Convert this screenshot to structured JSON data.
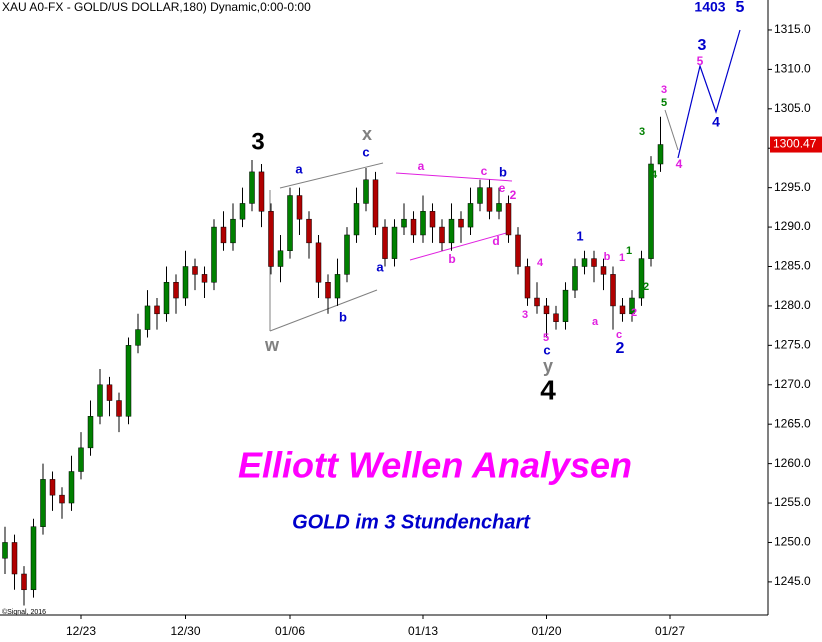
{
  "chart_data": {
    "type": "candlestick",
    "title": "XAU A0-FX - GOLD/US DOLLAR,180) Dynamic,0:00-0:00",
    "headline": "Elliott Wellen Analysen",
    "subtitle": "GOLD im 3 Stundenchart",
    "credit": "©Signal, 2016",
    "categories": [
      null,
      null,
      null,
      null,
      null,
      null,
      null,
      null,
      "12/23",
      null,
      null,
      null,
      null,
      null,
      null,
      null,
      null,
      null,
      null,
      "12/30",
      null,
      null,
      null,
      null,
      null,
      null,
      null,
      null,
      null,
      null,
      "01/06",
      null,
      null,
      null,
      null,
      null,
      null,
      null,
      null,
      null,
      null,
      null,
      null,
      null,
      "01/13",
      null,
      null,
      null,
      null,
      null,
      null,
      null,
      null,
      null,
      null,
      null,
      null,
      "01/20",
      null,
      null,
      null,
      null,
      null,
      null,
      null,
      null,
      null,
      null,
      null,
      null,
      "01/27"
    ],
    "open": [
      1248,
      1250,
      1246,
      1244,
      1252,
      1258,
      1256,
      1255,
      1259,
      1262,
      1266,
      1270,
      1268,
      1266,
      1275,
      1277,
      1280,
      1279,
      1283,
      1281,
      1285,
      1284,
      1283,
      1290,
      1288,
      1291,
      1293,
      1297,
      1292,
      1285,
      1287,
      1294,
      1291,
      1288,
      1283,
      1281,
      1284,
      1289,
      1293,
      1296,
      1290,
      1286,
      1290,
      1291,
      1289,
      1292,
      1290,
      1288,
      1291,
      1290,
      1293,
      1295,
      1292,
      1293,
      1289,
      1285,
      1281,
      1280,
      1279,
      1278,
      1282,
      1285,
      1286,
      1285,
      1284,
      1280,
      1279,
      1281,
      1286,
      1298,
      null
    ],
    "high": [
      1252,
      1251,
      1247,
      1253,
      1260,
      1259,
      1257,
      1261,
      1264,
      1268,
      1272,
      1271,
      1269,
      1276,
      1279,
      1282,
      1281,
      1285,
      1284,
      1287,
      1286,
      1285,
      1291,
      1292,
      1293,
      1295,
      1298.5,
      1298,
      1293,
      1289,
      1295,
      1295,
      1292,
      1289,
      1284,
      1286,
      1290,
      1295,
      1297.5,
      1297,
      1291,
      1291,
      1293,
      1292,
      1294,
      1293,
      1291,
      1293,
      1292,
      1295,
      1296,
      1296,
      1295,
      1294,
      1290,
      1286,
      1283,
      1281,
      1280,
      1283,
      1286,
      1287,
      1287,
      1286,
      1285,
      1281,
      1282,
      1287,
      1299,
      1304,
      null
    ],
    "low": [
      1246,
      1244,
      1242,
      1243,
      1251,
      1254,
      1253,
      1254,
      1258,
      1261,
      1265,
      1266,
      1264,
      1265,
      1274,
      1276,
      1277,
      1278,
      1279,
      1280,
      1282,
      1281,
      1282,
      1287,
      1287,
      1290,
      1292,
      1290,
      1284,
      1283,
      1286,
      1289,
      1286,
      1281,
      1279,
      1280,
      1283,
      1288,
      1292,
      1289,
      1285,
      1285,
      1289,
      1288,
      1288,
      1288,
      1287,
      1287,
      1288,
      1289,
      1292,
      1291,
      1291,
      1288,
      1284,
      1280,
      1279,
      1276,
      1277,
      1277,
      1281,
      1284,
      1283,
      1282,
      1277,
      1278,
      1278,
      1280,
      1285,
      1297,
      null
    ],
    "close": [
      1250,
      1246,
      1244,
      1252,
      1258,
      1256,
      1255,
      1259,
      1262,
      1266,
      1270,
      1268,
      1266,
      1275,
      1277,
      1280,
      1279,
      1283,
      1281,
      1285,
      1284,
      1283,
      1290,
      1288,
      1291,
      1293,
      1297,
      1292,
      1285,
      1287,
      1294,
      1291,
      1288,
      1283,
      1281,
      1284,
      1289,
      1293,
      1296,
      1290,
      1286,
      1290,
      1291,
      1289,
      1292,
      1290,
      1288,
      1291,
      1290,
      1293,
      1295,
      1292,
      1293,
      1289,
      1285,
      1281,
      1280,
      1279,
      1278,
      1282,
      1285,
      1286,
      1285,
      1284,
      1280,
      1279,
      1281,
      1286,
      1298,
      1300.47,
      null
    ],
    "up_color": "#008000",
    "down_color": "#b00000",
    "ylim": [
      1240.8,
      1318.8
    ],
    "yticks": [
      {
        "value": 1245,
        "label": "1245.0"
      },
      {
        "value": 1250,
        "label": "1250.0"
      },
      {
        "value": 1255,
        "label": "1255.0"
      },
      {
        "value": 1260,
        "label": "1260.0"
      },
      {
        "value": 1265,
        "label": "1265.0"
      },
      {
        "value": 1270,
        "label": "1270.0"
      },
      {
        "value": 1275,
        "label": "1275.0"
      },
      {
        "value": 1280,
        "label": "1280.0"
      },
      {
        "value": 1285,
        "label": "1285.0"
      },
      {
        "value": 1290,
        "label": "1290.0"
      },
      {
        "value": 1295,
        "label": "1295.0"
      },
      {
        "value": 1300,
        "label": "1300.0"
      },
      {
        "value": 1305,
        "label": "1305.0"
      },
      {
        "value": 1310,
        "label": "1310.0"
      },
      {
        "value": 1315,
        "label": "1315.0"
      }
    ],
    "grid": false,
    "annotations": [
      {
        "text": "3",
        "color": "#000000"
      },
      {
        "text": "4",
        "color": "#000000"
      },
      {
        "text": "x",
        "color": "#808080"
      },
      {
        "text": "w",
        "color": "#808080"
      },
      {
        "text": "y",
        "color": "#808080"
      },
      {
        "text": "a",
        "color": "#0000cc"
      },
      {
        "text": "c",
        "color": "#0000cc"
      },
      {
        "text": "a",
        "color": "#0000cc"
      },
      {
        "text": "b",
        "color": "#0000cc"
      },
      {
        "text": "b",
        "color": "#0000cc"
      },
      {
        "text": "1",
        "color": "#0000cc"
      },
      {
        "text": "c",
        "color": "#0000cc"
      },
      {
        "text": "2",
        "color": "#0000cc"
      },
      {
        "text": "3",
        "color": "#0000cc"
      },
      {
        "text": "4",
        "color": "#0000cc"
      },
      {
        "text": "5",
        "color": "#0000cc"
      },
      {
        "text": "1403",
        "color": "#0000cc"
      },
      {
        "text": "a",
        "color": "#e020e0"
      },
      {
        "text": "c",
        "color": "#e020e0"
      },
      {
        "text": "e",
        "color": "#e020e0"
      },
      {
        "text": "2",
        "color": "#e020e0"
      },
      {
        "text": "b",
        "color": "#e020e0"
      },
      {
        "text": "d",
        "color": "#e020e0"
      },
      {
        "text": "4",
        "color": "#e020e0"
      },
      {
        "text": "3",
        "color": "#e020e0"
      },
      {
        "text": "5",
        "color": "#e020e0"
      },
      {
        "text": "a",
        "color": "#e020e0"
      },
      {
        "text": "b",
        "color": "#e020e0"
      },
      {
        "text": "1",
        "color": "#e020e0"
      },
      {
        "text": "c",
        "color": "#e020e0"
      },
      {
        "text": "2",
        "color": "#e020e0"
      },
      {
        "text": "3",
        "color": "#e020e0"
      },
      {
        "text": "5",
        "color": "#e020e0"
      },
      {
        "text": "4",
        "color": "#e020e0"
      },
      {
        "text": "1",
        "color": "#008000"
      },
      {
        "text": "2",
        "color": "#008000"
      },
      {
        "text": "3",
        "color": "#008000"
      },
      {
        "text": "4",
        "color": "#008000"
      },
      {
        "text": "5",
        "color": "#008000"
      }
    ]
  }
}
